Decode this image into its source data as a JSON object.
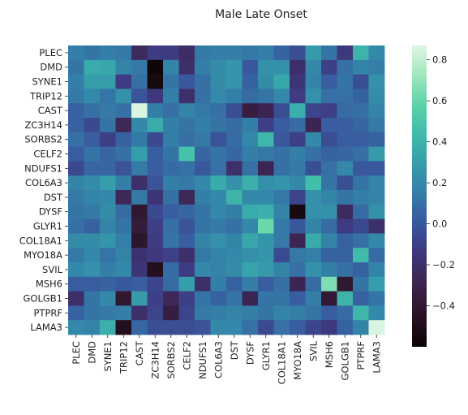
{
  "chart_data": {
    "type": "heatmap",
    "title": "Male Late Onset",
    "xlabel": "",
    "ylabel": "",
    "genes": [
      "PLEC",
      "DMD",
      "SYNE1",
      "TRIP12",
      "CAST",
      "ZC3H14",
      "SORBS2",
      "CELF2",
      "NDUFS1",
      "COL6A3",
      "DST",
      "DYSF",
      "GLYR1",
      "COL18A1",
      "MYO18A",
      "SVIL",
      "MSH6",
      "GOLGB1",
      "PTPRF",
      "LAMA3"
    ],
    "values": [
      [
        0.16,
        0.12,
        0.16,
        0.14,
        -0.24,
        -0.12,
        -0.12,
        -0.22,
        0.14,
        0.16,
        0.16,
        0.14,
        0.16,
        0.04,
        -0.04,
        0.28,
        0.12,
        -0.14,
        0.4,
        0.2
      ],
      [
        0.12,
        0.36,
        0.34,
        0.18,
        0.14,
        -0.58,
        0.18,
        -0.2,
        0.16,
        0.22,
        0.26,
        0.0,
        0.24,
        0.24,
        -0.2,
        0.2,
        -0.1,
        0.1,
        0.18,
        0.16
      ],
      [
        0.16,
        0.3,
        0.3,
        -0.12,
        0.1,
        -0.54,
        0.12,
        0.0,
        0.1,
        0.22,
        0.26,
        0.04,
        0.22,
        0.34,
        -0.16,
        0.18,
        0.02,
        0.12,
        -0.04,
        0.24
      ],
      [
        0.14,
        0.2,
        0.12,
        0.24,
        -0.02,
        -0.14,
        0.16,
        -0.2,
        0.1,
        0.2,
        0.16,
        0.08,
        0.12,
        0.2,
        -0.12,
        0.24,
        0.1,
        0.1,
        0.04,
        0.22
      ],
      [
        0.04,
        0.1,
        0.14,
        0.1,
        0.86,
        0.16,
        0.1,
        0.18,
        0.14,
        0.1,
        -0.04,
        -0.34,
        -0.28,
        -0.04,
        0.38,
        -0.08,
        -0.1,
        0.08,
        0.1,
        0.18
      ],
      [
        0.04,
        -0.06,
        0.12,
        -0.26,
        0.2,
        0.36,
        0.16,
        0.12,
        0.16,
        0.12,
        0.08,
        0.16,
        -0.1,
        0.02,
        0.08,
        -0.28,
        0.02,
        0.02,
        0.06,
        0.14
      ],
      [
        0.1,
        0.02,
        -0.1,
        0.04,
        0.14,
        -0.06,
        0.16,
        0.1,
        0.14,
        -0.02,
        0.08,
        0.2,
        0.42,
        0.0,
        -0.1,
        0.2,
        -0.04,
        0.02,
        0.02,
        0.04
      ],
      [
        0.02,
        0.12,
        0.06,
        0.1,
        0.3,
        0.02,
        0.12,
        0.48,
        0.06,
        0.12,
        0.06,
        0.16,
        0.14,
        0.1,
        0.16,
        0.1,
        0.04,
        0.06,
        0.1,
        0.28
      ],
      [
        -0.06,
        0.06,
        0.06,
        -0.02,
        0.14,
        0.02,
        0.08,
        0.1,
        0.0,
        0.1,
        -0.2,
        0.1,
        -0.28,
        0.1,
        0.14,
        -0.04,
        0.1,
        0.2,
        0.0,
        0.0
      ],
      [
        0.18,
        0.22,
        0.3,
        0.16,
        -0.2,
        -0.02,
        0.16,
        0.14,
        0.2,
        0.36,
        0.24,
        0.38,
        0.24,
        0.26,
        0.2,
        0.46,
        0.12,
        -0.04,
        0.12,
        0.18
      ],
      [
        0.14,
        0.18,
        0.2,
        -0.26,
        0.14,
        -0.16,
        0.1,
        -0.26,
        0.16,
        0.2,
        0.4,
        0.2,
        0.2,
        0.14,
        -0.08,
        0.24,
        0.18,
        0.12,
        0.16,
        0.18
      ],
      [
        0.12,
        0.14,
        0.22,
        0.08,
        -0.4,
        -0.06,
        0.02,
        0.06,
        0.12,
        0.2,
        0.16,
        0.36,
        0.38,
        0.18,
        -0.54,
        0.24,
        0.24,
        -0.24,
        0.08,
        0.24
      ],
      [
        0.1,
        0.04,
        0.18,
        0.12,
        -0.36,
        -0.1,
        0.1,
        -0.02,
        0.12,
        0.14,
        0.1,
        0.2,
        0.62,
        0.14,
        0.0,
        0.18,
        0.08,
        -0.12,
        -0.06,
        -0.2
      ],
      [
        0.22,
        0.22,
        0.26,
        0.16,
        -0.42,
        -0.12,
        0.12,
        0.02,
        0.18,
        0.24,
        0.18,
        0.34,
        0.26,
        0.14,
        -0.28,
        0.36,
        0.18,
        0.04,
        0.1,
        0.2
      ],
      [
        0.14,
        0.2,
        0.12,
        0.18,
        -0.18,
        -0.14,
        -0.1,
        -0.2,
        0.14,
        0.18,
        0.2,
        0.24,
        0.26,
        -0.06,
        0.14,
        0.16,
        0.04,
        0.04,
        0.44,
        0.08
      ],
      [
        0.2,
        0.24,
        0.16,
        0.2,
        -0.16,
        -0.48,
        0.08,
        -0.12,
        0.2,
        0.18,
        0.22,
        0.32,
        0.28,
        0.18,
        0.1,
        0.24,
        0.16,
        0.1,
        0.04,
        0.18
      ],
      [
        0.02,
        0.02,
        0.04,
        0.0,
        0.02,
        -0.08,
        0.08,
        0.3,
        -0.2,
        0.16,
        0.04,
        0.16,
        0.02,
        0.1,
        -0.28,
        0.08,
        0.66,
        -0.4,
        0.12,
        0.3
      ],
      [
        -0.2,
        0.12,
        0.2,
        -0.4,
        0.28,
        -0.1,
        -0.26,
        -0.1,
        0.12,
        0.04,
        0.12,
        -0.28,
        0.12,
        0.12,
        0.02,
        0.16,
        -0.38,
        0.4,
        0.04,
        0.12
      ],
      [
        0.04,
        0.12,
        0.14,
        0.16,
        -0.2,
        -0.08,
        -0.34,
        -0.08,
        0.14,
        0.16,
        0.18,
        0.16,
        0.12,
        0.18,
        0.16,
        0.12,
        0.02,
        0.08,
        0.42,
        0.2
      ],
      [
        0.2,
        0.18,
        0.38,
        -0.48,
        0.06,
        -0.04,
        -0.04,
        -0.04,
        -0.02,
        0.2,
        0.2,
        0.1,
        -0.06,
        0.1,
        0.02,
        -0.08,
        -0.14,
        0.04,
        0.18,
        0.86
      ]
    ],
    "vmin": -0.6,
    "vmax": 0.87,
    "colorbar_ticks": [
      -0.4,
      -0.2,
      0.0,
      0.2,
      0.4,
      0.6,
      0.8
    ],
    "colorbar_labels": [
      "−0.4",
      "−0.2",
      "0.0",
      "0.2",
      "0.4",
      "0.6",
      "0.8"
    ],
    "colormap": "mako",
    "grid": false
  }
}
